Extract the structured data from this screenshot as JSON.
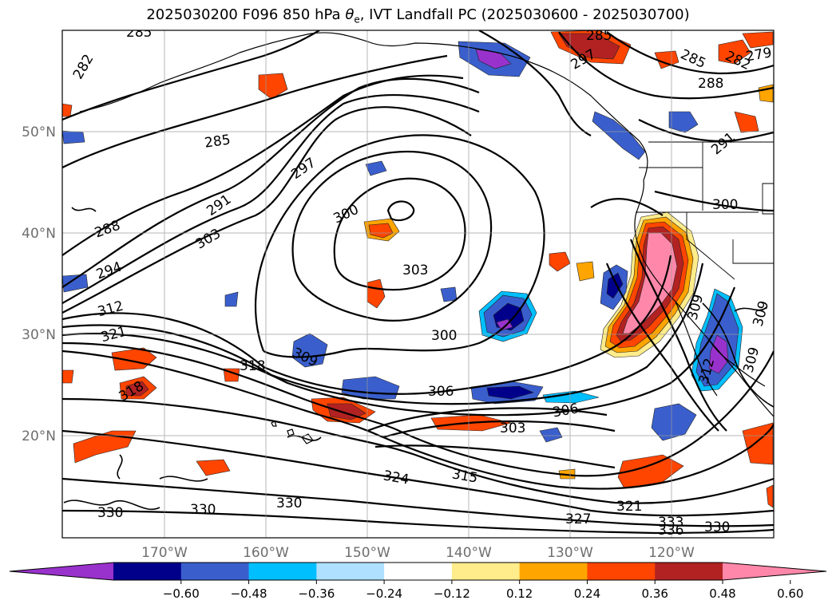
{
  "title": {
    "prefix": "2025030200 F096 850 hPa ",
    "theta": "θ",
    "theta_sub": "e",
    "suffix": ", IVT Landfall PC (2025030600 - 2025030700)"
  },
  "axes": {
    "lon_labels": [
      "170°W",
      "160°W",
      "150°W",
      "140°W",
      "130°W",
      "120°W"
    ],
    "lat_labels": [
      "50°N",
      "40°N",
      "30°N",
      "20°N"
    ]
  },
  "colorbar": {
    "colors": [
      "#9932cc",
      "#00008b",
      "#3a5fcd",
      "#00bfff",
      "#b0e0ff",
      "#ffffff",
      "#ffec8b",
      "#ffa500",
      "#ff4500",
      "#b22222",
      "#ff88aa"
    ],
    "tick_labels": [
      "−0.60",
      "−0.48",
      "−0.36",
      "−0.24",
      "−0.12",
      "0.12",
      "0.24",
      "0.36",
      "0.48",
      "0.60"
    ]
  },
  "contour_labels": [
    {
      "id": "l285a",
      "text": "285"
    },
    {
      "id": "l282a",
      "text": "282"
    },
    {
      "id": "l285b",
      "text": "285"
    },
    {
      "id": "l297a",
      "text": "297"
    },
    {
      "id": "l291",
      "text": "291"
    },
    {
      "id": "l288a",
      "text": "288"
    },
    {
      "id": "l303a",
      "text": "303"
    },
    {
      "id": "l294",
      "text": "294"
    },
    {
      "id": "l300a",
      "text": "300"
    },
    {
      "id": "l303b",
      "text": "303"
    },
    {
      "id": "l312",
      "text": "312"
    },
    {
      "id": "l321a",
      "text": "321"
    },
    {
      "id": "l300b",
      "text": "300"
    },
    {
      "id": "l309a",
      "text": "309"
    },
    {
      "id": "l318a",
      "text": "318"
    },
    {
      "id": "l318b",
      "text": "318"
    },
    {
      "id": "l306a",
      "text": "306"
    },
    {
      "id": "l306b",
      "text": "306"
    },
    {
      "id": "l303c",
      "text": "303"
    },
    {
      "id": "l324",
      "text": "324"
    },
    {
      "id": "l315",
      "text": "315"
    },
    {
      "id": "l330a",
      "text": "330"
    },
    {
      "id": "l330b",
      "text": "330"
    },
    {
      "id": "l330c",
      "text": "330"
    },
    {
      "id": "l321b",
      "text": "321"
    },
    {
      "id": "l327",
      "text": "327"
    },
    {
      "id": "l333",
      "text": "333"
    },
    {
      "id": "l336",
      "text": "336"
    },
    {
      "id": "l330d",
      "text": "330"
    },
    {
      "id": "l285c",
      "text": "285"
    },
    {
      "id": "l297b",
      "text": "297"
    },
    {
      "id": "l285d",
      "text": "285"
    },
    {
      "id": "l288b",
      "text": "288"
    },
    {
      "id": "l282b",
      "text": "282"
    },
    {
      "id": "l279",
      "text": "279"
    },
    {
      "id": "l291b",
      "text": "291"
    },
    {
      "id": "l300c",
      "text": "300"
    },
    {
      "id": "l309b",
      "text": "309"
    },
    {
      "id": "l309c",
      "text": "309"
    },
    {
      "id": "l312b",
      "text": "312"
    },
    {
      "id": "l309d",
      "text": "309"
    }
  ]
}
